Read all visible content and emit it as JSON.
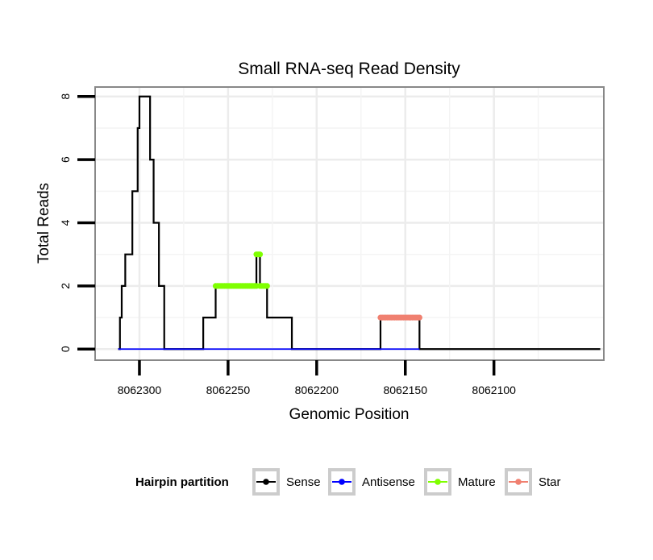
{
  "chart_data": {
    "type": "line",
    "title": "Small RNA-seq Read Density",
    "xlabel": "Genomic Position",
    "ylabel": "Total Reads",
    "x_reversed": true,
    "xlim": [
      8062038,
      8062325
    ],
    "ylim": [
      -0.35,
      8.3
    ],
    "grid": true,
    "x_ticks": [
      8062300,
      8062250,
      8062200,
      8062150,
      8062100
    ],
    "x_tick_labels": [
      "8062300",
      "8062250",
      "8062200",
      "8062150",
      "8062100"
    ],
    "y_ticks": [
      0,
      2,
      4,
      6,
      8
    ],
    "y_tick_labels": [
      "0",
      "2",
      "4",
      "6",
      "8"
    ],
    "colors": {
      "Sense": "#000000",
      "Antisense": "#0000ff",
      "Mature": "#7fff00",
      "Star": "#f08070"
    },
    "series": [
      {
        "name": "Sense",
        "step": true,
        "points": [
          [
            8062312,
            0
          ],
          [
            8062311,
            1
          ],
          [
            8062310,
            2
          ],
          [
            8062308,
            3
          ],
          [
            8062304,
            5
          ],
          [
            8062301,
            7
          ],
          [
            8062300,
            8
          ],
          [
            8062294,
            6
          ],
          [
            8062292,
            4
          ],
          [
            8062289,
            2
          ],
          [
            8062286,
            0
          ],
          [
            8062264,
            1
          ],
          [
            8062257,
            2
          ],
          [
            8062234,
            3
          ],
          [
            8062232,
            2
          ],
          [
            8062228,
            1
          ],
          [
            8062214,
            0
          ],
          [
            8062164,
            1
          ],
          [
            8062142,
            0
          ],
          [
            8062040,
            0
          ]
        ]
      },
      {
        "name": "Antisense",
        "step": false,
        "points": [
          [
            8062312,
            0
          ],
          [
            8062142,
            0
          ]
        ]
      },
      {
        "name": "Mature",
        "step": false,
        "markers": true,
        "segments": [
          [
            [
              8062257,
              2
            ],
            [
              8062234,
              2
            ]
          ],
          [
            [
              8062234,
              3
            ],
            [
              8062232,
              3
            ]
          ],
          [
            [
              8062232,
              2
            ],
            [
              8062228,
              2
            ]
          ]
        ]
      },
      {
        "name": "Star",
        "step": false,
        "markers": true,
        "segments": [
          [
            [
              8062164,
              1
            ],
            [
              8062142,
              1
            ]
          ]
        ]
      }
    ],
    "legend": {
      "title": "Hairpin partition",
      "position": "bottom",
      "entries": [
        "Sense",
        "Antisense",
        "Mature",
        "Star"
      ]
    }
  }
}
